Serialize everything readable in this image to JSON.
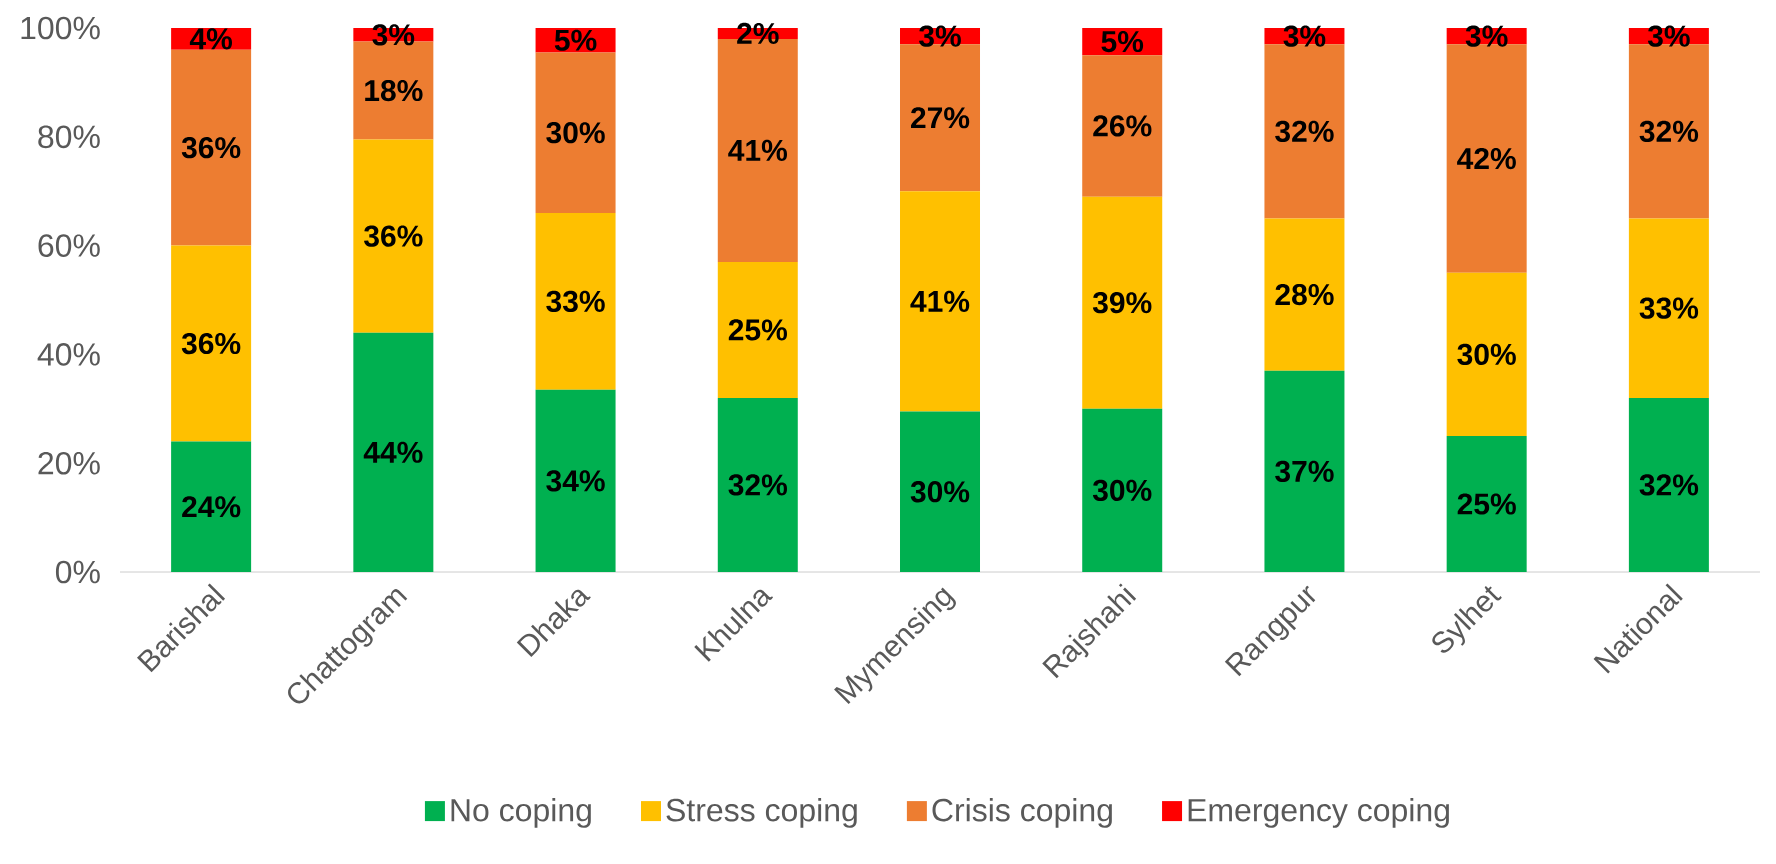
{
  "chart_data": {
    "type": "bar",
    "stacked": true,
    "categories": [
      "Barishal",
      "Chattogram",
      "Dhaka",
      "Khulna",
      "Mymensing",
      "Rajshahi",
      "Rangpur",
      "Sylhet",
      "National"
    ],
    "series": [
      {
        "name": "No coping",
        "color": "#00b050",
        "values": [
          24,
          44,
          33.5,
          32,
          29.5,
          30,
          37,
          25,
          32
        ],
        "value_labels": [
          "24%",
          "44%",
          "34%",
          "32%",
          "30%",
          "30%",
          "37%",
          "25%",
          "32%"
        ]
      },
      {
        "name": "Stress coping",
        "color": "#ffc000",
        "values": [
          36,
          35.5,
          32.5,
          25,
          40.5,
          39,
          28,
          30,
          33
        ],
        "value_labels": [
          "36%",
          "36%",
          "33%",
          "25%",
          "41%",
          "39%",
          "28%",
          "30%",
          "33%"
        ]
      },
      {
        "name": "Crisis coping",
        "color": "#ed7d31",
        "values": [
          36,
          18,
          29.5,
          41,
          27,
          26,
          32,
          42,
          32
        ],
        "value_labels": [
          "36%",
          "18%",
          "30%",
          "41%",
          "27%",
          "26%",
          "32%",
          "42%",
          "32%"
        ]
      },
      {
        "name": "Emergency coping",
        "color": "#ff0000",
        "values": [
          4,
          2.5,
          4.5,
          2,
          3,
          5,
          3,
          3,
          3
        ],
        "value_labels": [
          "4%",
          "3%",
          "5%",
          "2%",
          "3%",
          "5%",
          "3%",
          "3%",
          "3%"
        ]
      }
    ],
    "ylim": [
      0,
      100
    ],
    "yticks": [
      {
        "value": 0,
        "label": "0%"
      },
      {
        "value": 20,
        "label": "20%"
      },
      {
        "value": 40,
        "label": "40%"
      },
      {
        "value": 60,
        "label": "60%"
      },
      {
        "value": 80,
        "label": "80%"
      },
      {
        "value": 100,
        "label": "100%"
      }
    ],
    "legend": "bottom"
  }
}
